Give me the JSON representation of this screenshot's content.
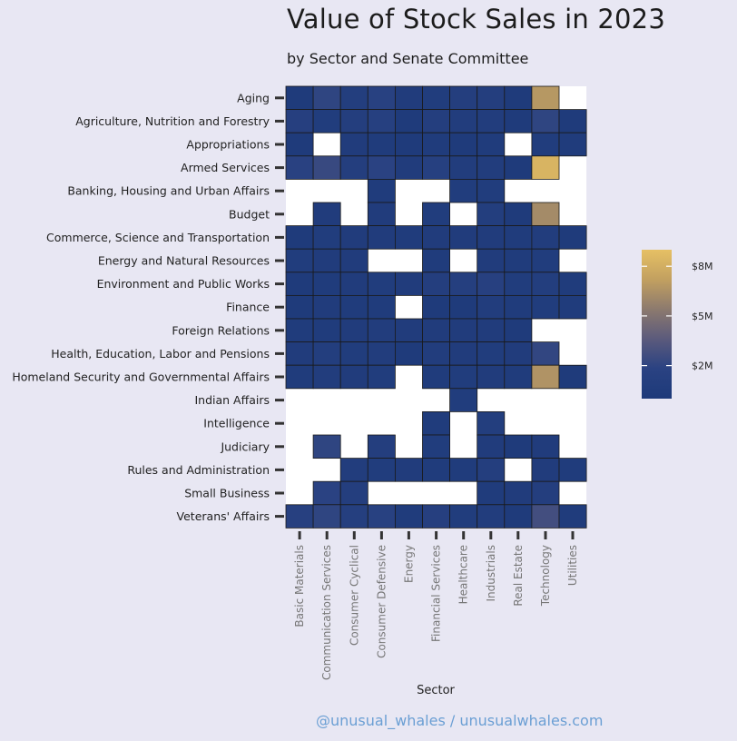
{
  "header": {
    "title": "Value of Stock Sales in 2023",
    "subtitle": "by Sector and Senate Committee"
  },
  "credit": "@unusual_whales / unusualwhales.com",
  "colors": {
    "background": "#e8e7f3",
    "scale_low": "#1d3a7a",
    "scale_mid": "#5b5a7c",
    "scale_high": "#e6c064",
    "missing": "#ffffff"
  },
  "chart_data": {
    "type": "heatmap",
    "title": "Value of Stock Sales in 2023",
    "subtitle": "by Sector and Senate Committee",
    "xlabel": "Sector",
    "ylabel": "",
    "x_categories": [
      "Basic Materials",
      "Communication Services",
      "Consumer Cyclical",
      "Consumer Defensive",
      "Energy",
      "Financial Services",
      "Healthcare",
      "Industrials",
      "Real Estate",
      "Technology",
      "Utilities"
    ],
    "y_categories": [
      "Aging",
      "Agriculture, Nutrition and Forestry",
      "Appropriations",
      "Armed Services",
      "Banking, Housing and Urban Affairs",
      "Budget",
      "Commerce, Science and Transportation",
      "Energy and Natural Resources",
      "Environment and Public Works",
      "Finance",
      "Foreign Relations",
      "Health, Education, Labor and Pensions",
      "Homeland Security and Governmental Affairs",
      "Indian Affairs",
      "Intelligence",
      "Judiciary",
      "Rules and Administration",
      "Small Business",
      "Veterans' Affairs"
    ],
    "value_unit": "$M",
    "values": [
      [
        0.3,
        2.0,
        0.8,
        1.5,
        0.5,
        0.6,
        1.0,
        1.0,
        0.3,
        6.8,
        null
      ],
      [
        1.2,
        0.6,
        0.9,
        1.3,
        0.3,
        0.9,
        0.7,
        0.7,
        0.3,
        2.0,
        0.3
      ],
      [
        0.3,
        null,
        0.5,
        0.4,
        0.3,
        0.4,
        0.3,
        0.4,
        null,
        0.6,
        0.4
      ],
      [
        1.6,
        2.3,
        1.0,
        1.8,
        0.5,
        1.3,
        0.7,
        0.7,
        0.3,
        8.3,
        null
      ],
      [
        null,
        null,
        null,
        0.4,
        null,
        null,
        0.6,
        0.6,
        null,
        null,
        null
      ],
      [
        null,
        0.5,
        null,
        0.5,
        null,
        0.6,
        null,
        0.8,
        0.3,
        6.2,
        null
      ],
      [
        0.3,
        0.6,
        0.5,
        0.5,
        0.4,
        0.5,
        0.5,
        0.5,
        0.4,
        0.7,
        0.3
      ],
      [
        0.6,
        0.5,
        0.5,
        null,
        null,
        0.4,
        null,
        0.5,
        0.4,
        0.6,
        null
      ],
      [
        0.3,
        0.4,
        0.5,
        0.6,
        0.5,
        0.9,
        1.1,
        1.4,
        0.6,
        0.8,
        0.4
      ],
      [
        0.3,
        0.5,
        0.4,
        0.4,
        null,
        0.3,
        0.3,
        0.7,
        0.4,
        0.6,
        0.4
      ],
      [
        0.4,
        0.4,
        0.5,
        0.7,
        0.5,
        0.5,
        0.5,
        0.5,
        0.3,
        null,
        null
      ],
      [
        0.5,
        0.8,
        0.6,
        0.7,
        0.3,
        0.7,
        0.5,
        0.6,
        0.5,
        2.1,
        null
      ],
      [
        0.4,
        0.7,
        0.5,
        0.6,
        null,
        0.4,
        0.6,
        0.5,
        0.4,
        6.6,
        0.3
      ],
      [
        null,
        null,
        null,
        null,
        null,
        null,
        0.6,
        null,
        null,
        null,
        null
      ],
      [
        null,
        null,
        null,
        null,
        null,
        0.4,
        null,
        0.8,
        null,
        null,
        null
      ],
      [
        null,
        2.0,
        null,
        0.9,
        null,
        0.6,
        null,
        0.5,
        0.3,
        0.5,
        null
      ],
      [
        null,
        null,
        0.7,
        0.6,
        0.5,
        0.4,
        0.4,
        0.9,
        null,
        0.5,
        0.4
      ],
      [
        null,
        1.8,
        0.9,
        null,
        null,
        null,
        null,
        0.4,
        0.5,
        0.9,
        null
      ],
      [
        1.4,
        2.0,
        1.1,
        1.5,
        0.4,
        1.2,
        0.6,
        0.7,
        0.3,
        2.7,
        0.4
      ]
    ],
    "colorscale": {
      "min": 0,
      "max": 9,
      "stops": [
        "#1d3a7a",
        "#2a4282",
        "#5b5a7c",
        "#8c7a6e",
        "#c2a060",
        "#e6c064"
      ],
      "ticks": [
        2,
        5,
        8
      ],
      "tick_labels": [
        "$2M",
        "$5M",
        "$8M"
      ]
    },
    "legend_placement": "right",
    "grid": false
  }
}
